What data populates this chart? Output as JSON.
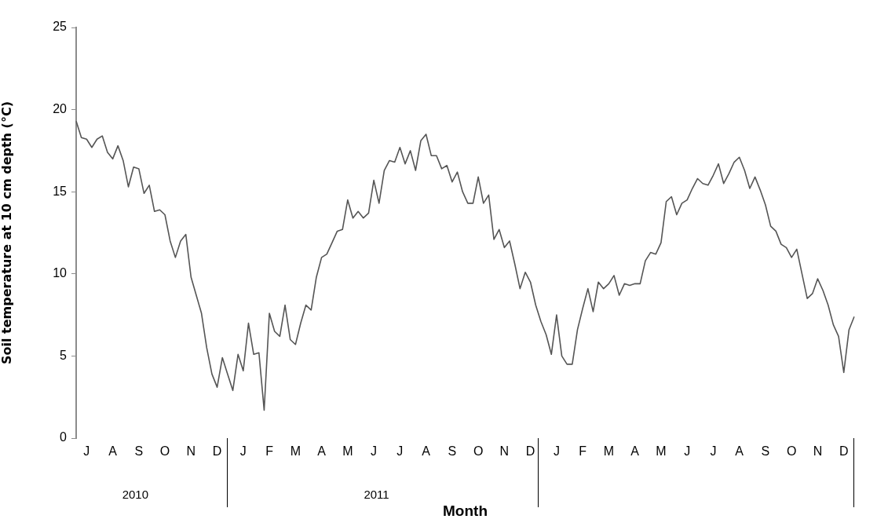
{
  "chart_data": {
    "type": "line",
    "xlabel": "Month",
    "ylabel": "Soil temperature at 10 cm depth (°C)",
    "ylim": [
      0,
      25
    ],
    "yticks": [
      0,
      5,
      10,
      15,
      20,
      25
    ],
    "categories": [
      null,
      null,
      "J",
      null,
      null,
      null,
      null,
      "A",
      null,
      null,
      null,
      null,
      "S",
      null,
      null,
      null,
      null,
      "O",
      null,
      null,
      null,
      null,
      "N",
      null,
      null,
      null,
      null,
      "D",
      null,
      null,
      null,
      null,
      "J",
      null,
      null,
      null,
      null,
      "F",
      null,
      null,
      null,
      null,
      "M",
      null,
      null,
      null,
      null,
      "A",
      null,
      null,
      null,
      null,
      "M",
      null,
      null,
      null,
      null,
      "J",
      null,
      null,
      null,
      null,
      "J",
      null,
      null,
      null,
      null,
      "A",
      null,
      null,
      null,
      null,
      "S",
      null,
      null,
      null,
      null,
      "O",
      null,
      null,
      null,
      null,
      "N",
      null,
      null,
      null,
      null,
      "D",
      null,
      null,
      null,
      null,
      "J",
      null,
      null,
      null,
      null,
      "F",
      null,
      null,
      null,
      null,
      "M",
      null,
      null,
      null,
      null,
      "A",
      null,
      null,
      null,
      null,
      "M",
      null,
      null,
      null,
      null,
      "J",
      null,
      null,
      null,
      null,
      "J",
      null,
      null,
      null,
      null,
      "A",
      null,
      null,
      null,
      null,
      "S",
      null,
      null,
      null,
      null,
      "O",
      null,
      null,
      null,
      null,
      "N",
      null,
      null,
      null,
      null,
      "D",
      null,
      null
    ],
    "annotations": [
      "2010",
      "2011"
    ],
    "series": [
      {
        "color": "#555555",
        "values": [
          19.3,
          18.3,
          18.2,
          17.7,
          18.2,
          18.4,
          17.4,
          17.0,
          17.8,
          16.9,
          15.3,
          16.5,
          16.4,
          14.9,
          15.4,
          13.8,
          13.9,
          13.6,
          12.0,
          11.0,
          12.0,
          12.4,
          9.8,
          8.7,
          7.6,
          5.5,
          3.9,
          3.1,
          4.9,
          3.9,
          2.9,
          5.1,
          4.1,
          7.0,
          5.1,
          5.2,
          1.7,
          7.6,
          6.5,
          6.2,
          8.1,
          6.0,
          5.7,
          7.0,
          8.1,
          7.8,
          9.8,
          11.0,
          11.2,
          11.9,
          12.6,
          12.7,
          14.5,
          13.4,
          13.8,
          13.4,
          13.7,
          15.7,
          14.3,
          16.3,
          16.9,
          16.8,
          17.7,
          16.7,
          17.5,
          16.3,
          18.1,
          18.5,
          17.2,
          17.2,
          16.4,
          16.6,
          15.6,
          16.2,
          15.0,
          14.3,
          14.3,
          15.9,
          14.3,
          14.8,
          12.1,
          12.7,
          11.6,
          12.0,
          10.6,
          9.1,
          10.1,
          9.5,
          8.1,
          7.1,
          6.3,
          5.1,
          7.5,
          5.0,
          4.5,
          4.5,
          6.6,
          7.9,
          9.1,
          7.7,
          9.5,
          9.1,
          9.4,
          9.9,
          8.7,
          9.4,
          9.3,
          9.4,
          9.4,
          10.8,
          11.3,
          11.2,
          11.9,
          14.4,
          14.7,
          13.6,
          14.3,
          14.5,
          15.2,
          15.8,
          15.5,
          15.4,
          16.0,
          16.7,
          15.5,
          16.1,
          16.8,
          17.1,
          16.3,
          15.2,
          15.9,
          15.1,
          14.2,
          12.9,
          12.6,
          11.8,
          11.6,
          11.0,
          11.5,
          10.0,
          8.5,
          8.8,
          9.7,
          9.0,
          8.1,
          6.9,
          6.2,
          4.0,
          6.6,
          7.4
        ]
      }
    ]
  }
}
